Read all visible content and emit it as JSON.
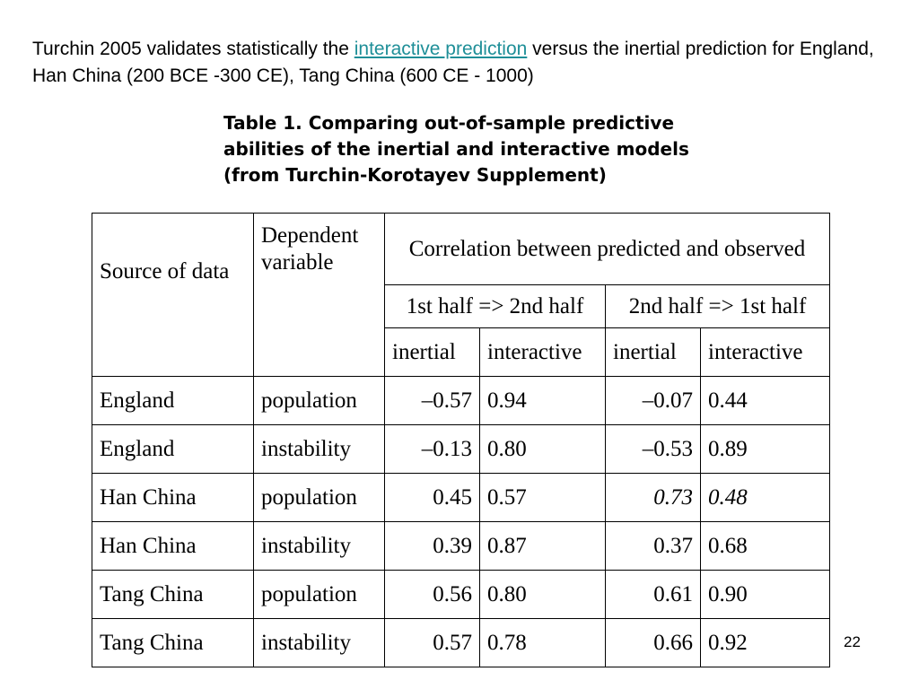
{
  "intro": {
    "text_before": "Turchin 2005 validates statistically the ",
    "link_text": "interactive prediction",
    "text_after": " versus the inertial prediction for England, Han China (200 BCE -300 CE), Tang China (600 CE - 1000)"
  },
  "caption": {
    "line1": "Table 1. Comparing out-of-sample predictive",
    "line2": "abilities of the inertial and interactive models",
    "line3": "(from Turchin-Korotayev Supplement)"
  },
  "table": {
    "header": {
      "source": "Source of data",
      "dependent": "Dependent variable",
      "correlation": "Correlation between predicted and observed",
      "half1": "1st half => 2nd half",
      "half2": "2nd half => 1st half",
      "inertial1": "inertial",
      "interactive1": "interactive",
      "inertial2": "inertial",
      "interactive2": "interactive"
    },
    "rows": [
      {
        "source": "England",
        "variable": "population",
        "a": "–0.57",
        "b": "0.94",
        "c": "–0.07",
        "d": "0.44"
      },
      {
        "source": "England",
        "variable": "instability",
        "a": "–0.13",
        "b": "0.80",
        "c": "–0.53",
        "d": "0.89"
      },
      {
        "source": "Han China",
        "variable": "population",
        "a": "0.45",
        "b": "0.57",
        "c": "0.73",
        "d": "0.48"
      },
      {
        "source": "Han China",
        "variable": "instability",
        "a": "0.39",
        "b": "0.87",
        "c": "0.37",
        "d": "0.68"
      },
      {
        "source": "Tang China",
        "variable": "population",
        "a": "0.56",
        "b": "0.80",
        "c": "0.61",
        "d": "0.90"
      },
      {
        "source": "Tang China",
        "variable": "instability",
        "a": "0.57",
        "b": "0.78",
        "c": "0.66",
        "d": "0.92"
      }
    ]
  },
  "page_number": "22",
  "colors": {
    "link": "#1f8f98",
    "text": "#000000",
    "background": "#ffffff"
  }
}
